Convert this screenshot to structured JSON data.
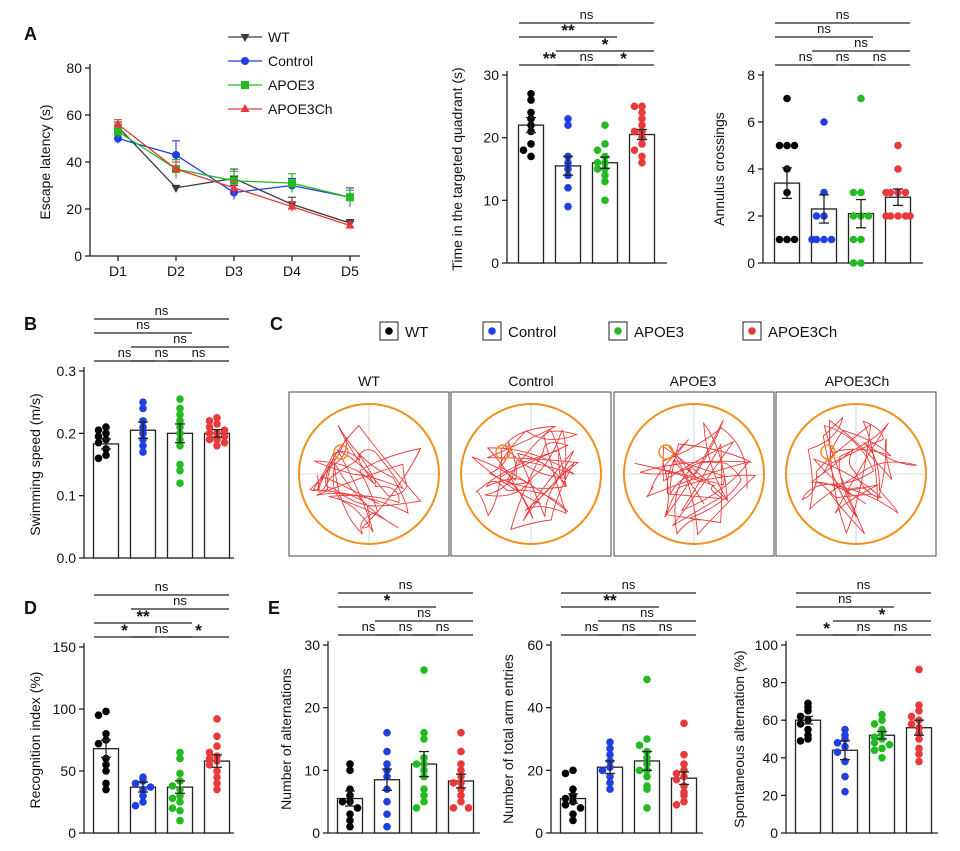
{
  "chart_data": [
    {
      "id": "escape",
      "type": "line",
      "panel": "A",
      "ylabel": "Escape latency (s)",
      "categories": [
        "D1",
        "D2",
        "D3",
        "D4",
        "D5"
      ],
      "ylim": [
        0,
        80
      ],
      "yticks": [
        0,
        20,
        40,
        60,
        80
      ],
      "legend_position": "top-center",
      "series": [
        {
          "name": "WT",
          "color": "#3a3a3a",
          "marker": "triangle-down",
          "values": [
            55,
            29,
            33,
            22,
            14
          ],
          "err": [
            2,
            1,
            4,
            3,
            1.5
          ]
        },
        {
          "name": "Control",
          "color": "#1f3fe0",
          "marker": "circle",
          "values": [
            50,
            43,
            27,
            30,
            25
          ],
          "err": [
            2,
            6,
            3,
            3,
            4
          ]
        },
        {
          "name": "APOE3",
          "color": "#22bb22",
          "marker": "square",
          "values": [
            53,
            37,
            32,
            31,
            25
          ],
          "err": [
            3,
            4,
            4,
            4,
            3
          ]
        },
        {
          "name": "APOE3Ch",
          "color": "#e83a3a",
          "marker": "triangle-up",
          "values": [
            56,
            37,
            29,
            21,
            13
          ],
          "err": [
            2,
            3,
            3,
            2,
            1.5
          ]
        }
      ]
    },
    {
      "id": "quadrant",
      "type": "bar",
      "panel": "",
      "ylabel": "Time in the targeted quadrant (s)",
      "ylim": [
        0,
        30
      ],
      "yticks": [
        0,
        10,
        20,
        30
      ],
      "groups": [
        {
          "name": "WT",
          "color": "#000000",
          "mean": 22,
          "sem": 1.2,
          "points": [
            27,
            26,
            24,
            23,
            22,
            21,
            19,
            18,
            17
          ]
        },
        {
          "name": "Control",
          "color": "#1f3fe0",
          "mean": 15.5,
          "sem": 1.5,
          "points": [
            23,
            22,
            17,
            16,
            15,
            14,
            12,
            9
          ]
        },
        {
          "name": "APOE3",
          "color": "#22bb22",
          "mean": 16,
          "sem": 0.9,
          "points": [
            22,
            19,
            18,
            17,
            16,
            16,
            15,
            15,
            14,
            13,
            10
          ]
        },
        {
          "name": "APOE3Ch",
          "color": "#e83a3a",
          "mean": 20.5,
          "sem": 0.8,
          "points": [
            25,
            25,
            24,
            23,
            22,
            21,
            21,
            20,
            19,
            18,
            17,
            16
          ]
        }
      ],
      "significance": [
        {
          "a": 0,
          "b": 1,
          "label": "**",
          "level": 0
        },
        {
          "a": 1,
          "b": 2,
          "label": "ns",
          "level": 0
        },
        {
          "a": 2,
          "b": 3,
          "label": "*",
          "level": 0
        },
        {
          "a": 1,
          "b": 3,
          "label": "*",
          "level": 1
        },
        {
          "a": 0,
          "b": 2,
          "label": "**",
          "level": 2
        },
        {
          "a": 0,
          "b": 3,
          "label": "ns",
          "level": 3
        }
      ]
    },
    {
      "id": "annulus",
      "type": "bar",
      "panel": "",
      "ylabel": "Annulus crossings",
      "ylim": [
        0,
        8
      ],
      "yticks": [
        0,
        2,
        4,
        6,
        8
      ],
      "groups": [
        {
          "name": "WT",
          "color": "#000000",
          "mean": 3.4,
          "sem": 0.65,
          "points": [
            7,
            5,
            5,
            5,
            4,
            3,
            1,
            1,
            1
          ]
        },
        {
          "name": "Control",
          "color": "#1f3fe0",
          "mean": 2.3,
          "sem": 0.6,
          "points": [
            6,
            3,
            2,
            2,
            1,
            1,
            1,
            1
          ]
        },
        {
          "name": "APOE3",
          "color": "#22bb22",
          "mean": 2.1,
          "sem": 0.6,
          "points": [
            7,
            3,
            3,
            2,
            2,
            2,
            1,
            1,
            0,
            0
          ]
        },
        {
          "name": "APOE3Ch",
          "color": "#e83a3a",
          "mean": 2.8,
          "sem": 0.35,
          "points": [
            5,
            4,
            3,
            3,
            3,
            3,
            2,
            2,
            2,
            2,
            2
          ]
        }
      ],
      "significance": [
        {
          "a": 0,
          "b": 1,
          "label": "ns",
          "level": 0
        },
        {
          "a": 1,
          "b": 2,
          "label": "ns",
          "level": 0
        },
        {
          "a": 2,
          "b": 3,
          "label": "ns",
          "level": 0
        },
        {
          "a": 1,
          "b": 3,
          "label": "ns",
          "level": 1
        },
        {
          "a": 0,
          "b": 2,
          "label": "ns",
          "level": 2
        },
        {
          "a": 0,
          "b": 3,
          "label": "ns",
          "level": 3
        }
      ]
    },
    {
      "id": "speed",
      "type": "bar",
      "panel": "B",
      "ylabel": "Swimming speed (m/s)",
      "ylim": [
        0,
        0.3
      ],
      "yticks": [
        0.0,
        0.1,
        0.2,
        0.3
      ],
      "tick_decimals": 1,
      "groups": [
        {
          "name": "WT",
          "color": "#000000",
          "mean": 0.183,
          "sem": 0.008,
          "points": [
            0.21,
            0.205,
            0.2,
            0.195,
            0.19,
            0.185,
            0.175,
            0.165,
            0.16
          ]
        },
        {
          "name": "Control",
          "color": "#1f3fe0",
          "mean": 0.205,
          "sem": 0.013,
          "points": [
            0.25,
            0.24,
            0.22,
            0.21,
            0.2,
            0.19,
            0.18,
            0.17
          ]
        },
        {
          "name": "APOE3",
          "color": "#22bb22",
          "mean": 0.2,
          "sem": 0.015,
          "points": [
            0.255,
            0.24,
            0.23,
            0.22,
            0.21,
            0.2,
            0.19,
            0.18,
            0.15,
            0.14,
            0.12
          ]
        },
        {
          "name": "APOE3Ch",
          "color": "#e83a3a",
          "mean": 0.2,
          "sem": 0.006,
          "points": [
            0.225,
            0.22,
            0.215,
            0.21,
            0.205,
            0.2,
            0.2,
            0.195,
            0.19,
            0.19,
            0.185,
            0.18
          ]
        }
      ],
      "significance": [
        {
          "a": 0,
          "b": 1,
          "label": "ns",
          "level": 0
        },
        {
          "a": 1,
          "b": 2,
          "label": "ns",
          "level": 0
        },
        {
          "a": 2,
          "b": 3,
          "label": "ns",
          "level": 0
        },
        {
          "a": 1,
          "b": 3,
          "label": "ns",
          "level": 1
        },
        {
          "a": 0,
          "b": 2,
          "label": "ns",
          "level": 2
        },
        {
          "a": 0,
          "b": 3,
          "label": "ns",
          "level": 3
        }
      ]
    },
    {
      "id": "recognition",
      "type": "bar",
      "panel": "D",
      "ylabel": "Recognition index (%)",
      "ylim": [
        0,
        150
      ],
      "yticks": [
        0,
        50,
        100,
        150
      ],
      "groups": [
        {
          "name": "WT",
          "color": "#000000",
          "mean": 68,
          "sem": 7,
          "points": [
            98,
            95,
            80,
            75,
            72,
            60,
            55,
            50,
            40,
            35
          ]
        },
        {
          "name": "Control",
          "color": "#1f3fe0",
          "mean": 37,
          "sem": 4,
          "points": [
            45,
            42,
            40,
            37,
            35,
            30,
            25,
            22
          ]
        },
        {
          "name": "APOE3",
          "color": "#22bb22",
          "mean": 37,
          "sem": 5,
          "points": [
            65,
            60,
            48,
            42,
            38,
            35,
            30,
            28,
            25,
            20,
            18,
            10
          ]
        },
        {
          "name": "APOE3Ch",
          "color": "#e83a3a",
          "mean": 58,
          "sem": 5,
          "points": [
            92,
            78,
            70,
            65,
            62,
            60,
            58,
            55,
            50,
            45,
            40,
            35
          ]
        }
      ],
      "significance": [
        {
          "a": 0,
          "b": 1,
          "label": "*",
          "level": 0
        },
        {
          "a": 1,
          "b": 2,
          "label": "ns",
          "level": 0
        },
        {
          "a": 2,
          "b": 3,
          "label": "*",
          "level": 0
        },
        {
          "a": 0,
          "b": 2,
          "label": "**",
          "level": 1
        },
        {
          "a": 1,
          "b": 3,
          "label": "ns",
          "level": 2
        },
        {
          "a": 0,
          "b": 3,
          "label": "ns",
          "level": 3
        }
      ]
    },
    {
      "id": "alternations",
      "type": "bar",
      "panel": "E",
      "ylabel": "Number of alternations",
      "ylim": [
        0,
        30
      ],
      "yticks": [
        0,
        10,
        20,
        30
      ],
      "groups": [
        {
          "name": "WT",
          "color": "#000000",
          "mean": 5.5,
          "sem": 1.2,
          "points": [
            11,
            10,
            7,
            6,
            5,
            5,
            4,
            3,
            2,
            1
          ]
        },
        {
          "name": "Control",
          "color": "#1f3fe0",
          "mean": 8.5,
          "sem": 1.7,
          "points": [
            16,
            13,
            11,
            10,
            9,
            7,
            5,
            3,
            1
          ]
        },
        {
          "name": "APOE3",
          "color": "#22bb22",
          "mean": 11,
          "sem": 2,
          "points": [
            26,
            16,
            15,
            12,
            11,
            11,
            10,
            9,
            7,
            6,
            5,
            4
          ]
        },
        {
          "name": "APOE3Ch",
          "color": "#e83a3a",
          "mean": 8.3,
          "sem": 1.1,
          "points": [
            16,
            13,
            11,
            10,
            9,
            8,
            8,
            7,
            6,
            5,
            4,
            4
          ]
        }
      ],
      "significance": [
        {
          "a": 0,
          "b": 1,
          "label": "ns",
          "level": 0
        },
        {
          "a": 1,
          "b": 2,
          "label": "ns",
          "level": 0
        },
        {
          "a": 2,
          "b": 3,
          "label": "ns",
          "level": 0
        },
        {
          "a": 1,
          "b": 3,
          "label": "ns",
          "level": 1
        },
        {
          "a": 0,
          "b": 2,
          "label": "*",
          "level": 2
        },
        {
          "a": 0,
          "b": 3,
          "label": "ns",
          "level": 3
        }
      ]
    },
    {
      "id": "arm_entries",
      "type": "bar",
      "panel": "",
      "ylabel": "Number of total arm entries",
      "ylim": [
        0,
        60
      ],
      "yticks": [
        0,
        20,
        40,
        60
      ],
      "groups": [
        {
          "name": "WT",
          "color": "#000000",
          "mean": 11,
          "sem": 1.5,
          "points": [
            20,
            19,
            14,
            12,
            11,
            10,
            9,
            8,
            6,
            4
          ]
        },
        {
          "name": "Control",
          "color": "#1f3fe0",
          "mean": 21,
          "sem": 2,
          "points": [
            29,
            27,
            25,
            23,
            21,
            20,
            18,
            16,
            14
          ]
        },
        {
          "name": "APOE3",
          "color": "#22bb22",
          "mean": 23,
          "sem": 3,
          "points": [
            49,
            30,
            28,
            26,
            24,
            22,
            20,
            20,
            18,
            15,
            14,
            8
          ]
        },
        {
          "name": "APOE3Ch",
          "color": "#e83a3a",
          "mean": 17.5,
          "sem": 2,
          "points": [
            35,
            25,
            22,
            20,
            19,
            18,
            17,
            15,
            13,
            12,
            10,
            9
          ]
        }
      ],
      "significance": [
        {
          "a": 0,
          "b": 1,
          "label": "ns",
          "level": 0
        },
        {
          "a": 1,
          "b": 2,
          "label": "ns",
          "level": 0
        },
        {
          "a": 2,
          "b": 3,
          "label": "ns",
          "level": 0
        },
        {
          "a": 1,
          "b": 3,
          "label": "ns",
          "level": 1
        },
        {
          "a": 0,
          "b": 2,
          "label": "**",
          "level": 2
        },
        {
          "a": 0,
          "b": 3,
          "label": "ns",
          "level": 3
        }
      ]
    },
    {
      "id": "spontaneous",
      "type": "bar",
      "panel": "",
      "ylabel": "Spontaneous alternation (%)",
      "ylim": [
        0,
        100
      ],
      "yticks": [
        0,
        20,
        40,
        60,
        80,
        100
      ],
      "groups": [
        {
          "name": "WT",
          "color": "#000000",
          "mean": 60,
          "sem": 2,
          "points": [
            69,
            67,
            65,
            62,
            60,
            58,
            55,
            52,
            50,
            49
          ]
        },
        {
          "name": "Control",
          "color": "#1f3fe0",
          "mean": 44,
          "sem": 5,
          "points": [
            55,
            52,
            50,
            48,
            46,
            43,
            38,
            30,
            22
          ]
        },
        {
          "name": "APOE3",
          "color": "#22bb22",
          "mean": 52,
          "sem": 2,
          "points": [
            63,
            60,
            58,
            55,
            53,
            51,
            50,
            48,
            47,
            45,
            44,
            40
          ]
        },
        {
          "name": "APOE3Ch",
          "color": "#e83a3a",
          "mean": 56,
          "sem": 4,
          "points": [
            87,
            68,
            65,
            62,
            60,
            58,
            56,
            53,
            50,
            45,
            42,
            38
          ]
        }
      ],
      "significance": [
        {
          "a": 0,
          "b": 1,
          "label": "*",
          "level": 0
        },
        {
          "a": 1,
          "b": 2,
          "label": "ns",
          "level": 0
        },
        {
          "a": 2,
          "b": 3,
          "label": "ns",
          "level": 0
        },
        {
          "a": 1,
          "b": 3,
          "label": "*",
          "level": 1
        },
        {
          "a": 0,
          "b": 2,
          "label": "ns",
          "level": 2
        },
        {
          "a": 0,
          "b": 3,
          "label": "ns",
          "level": 3
        }
      ]
    }
  ],
  "panel_labels": {
    "a": "A",
    "b": "B",
    "c": "C",
    "d": "D",
    "e": "E"
  },
  "legend_c": [
    {
      "name": "WT",
      "color": "#000000"
    },
    {
      "name": "Control",
      "color": "#1f3fe0"
    },
    {
      "name": "APOE3",
      "color": "#22bb22"
    },
    {
      "name": "APOE3Ch",
      "color": "#e83a3a"
    }
  ],
  "tracks": {
    "titles": [
      "WT",
      "Control",
      "APOE3",
      "APOE3Ch"
    ],
    "pool_color": "#f0901e",
    "path_color": "#e83a3a"
  }
}
